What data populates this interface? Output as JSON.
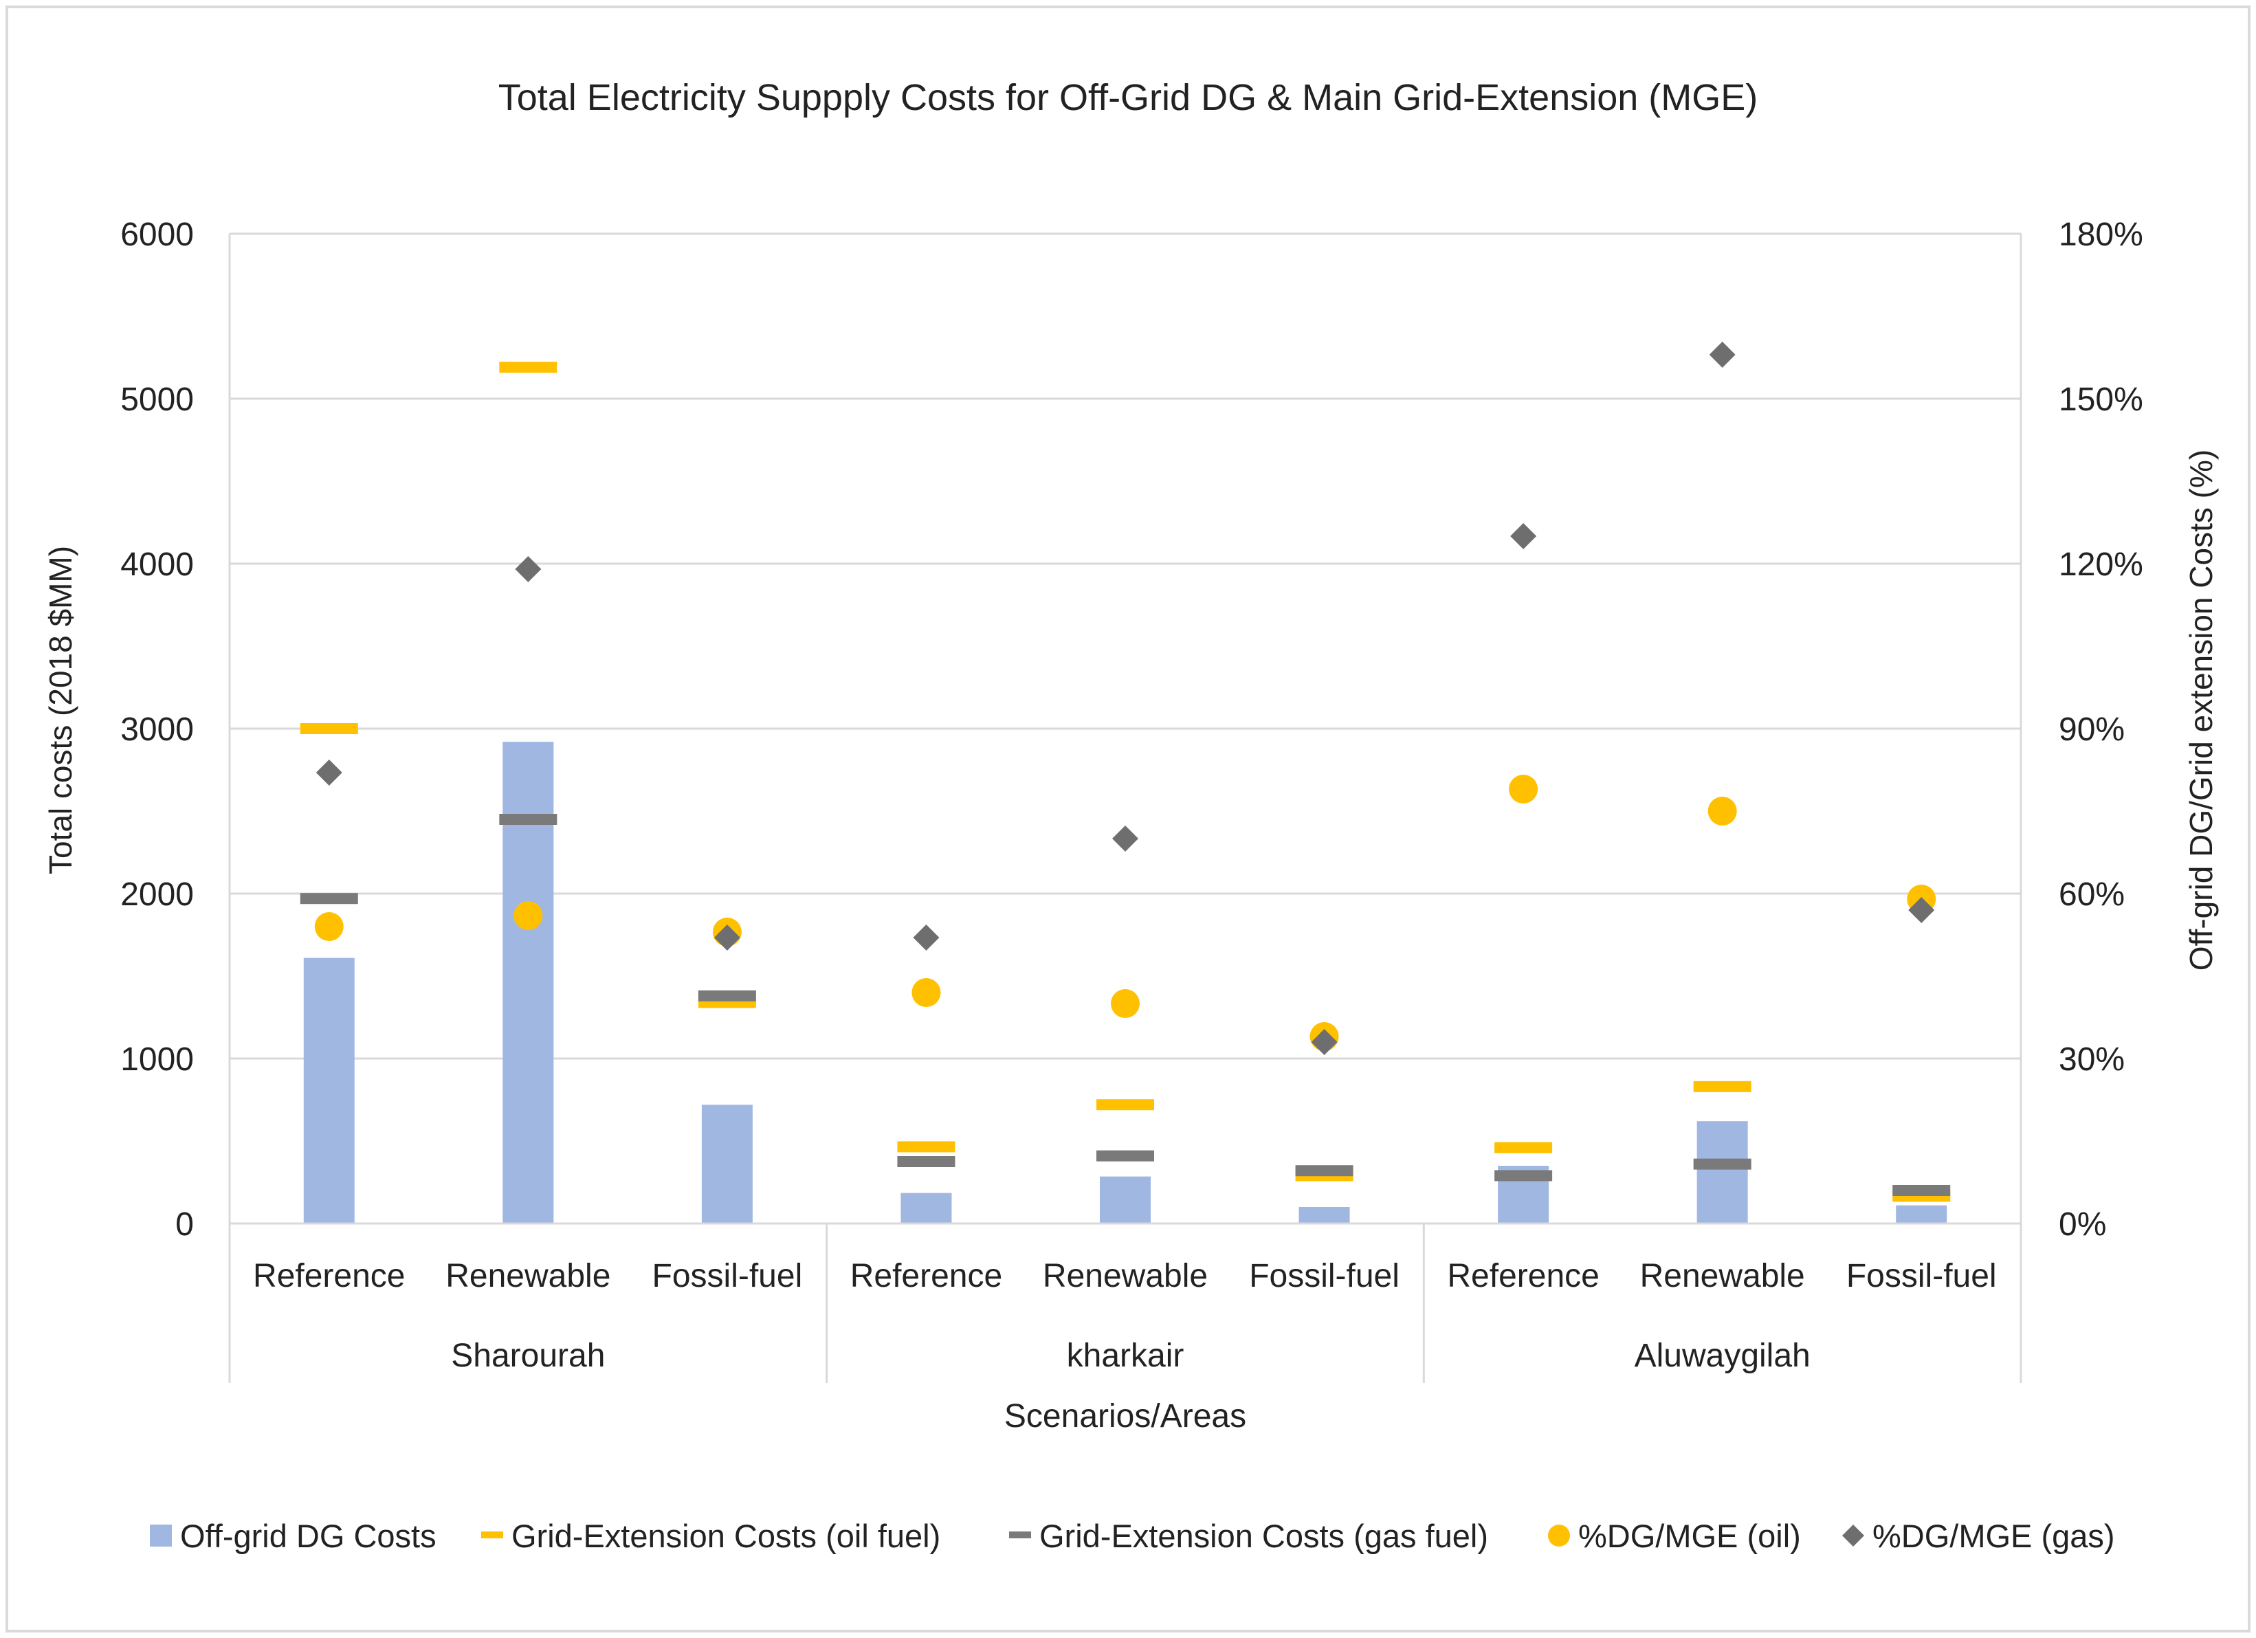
{
  "chart_data": {
    "type": "bar",
    "title": "Total Electricity Suppply Costs for Off-Grid DG & Main Grid-Extension (MGE)",
    "xlabel": "Scenarios/Areas",
    "ylabel": "Total costs (2018 $MM)",
    "y2label": "Off-grid DG/Grid extension Costs (%)",
    "ylim": [
      0,
      6000
    ],
    "y2lim": [
      0,
      1.8
    ],
    "yticks": [
      "0",
      "1000",
      "2000",
      "3000",
      "4000",
      "5000",
      "6000"
    ],
    "y2ticks": [
      "0%",
      "30%",
      "60%",
      "90%",
      "120%",
      "150%",
      "180%"
    ],
    "grid": true,
    "legend_position": "bottom",
    "groups": [
      "Sharourah",
      "kharkair",
      "Aluwaygilah"
    ],
    "categories": [
      "Reference",
      "Renewable",
      "Fossil-fuel",
      "Reference",
      "Renewable",
      "Fossil-fuel",
      "Reference",
      "Renewable",
      "Fossil-fuel"
    ],
    "series": [
      {
        "name": "Off-grid DG Costs",
        "kind": "bar",
        "axis": "left",
        "color": "#a0b7e2",
        "values": [
          1610,
          2920,
          720,
          185,
          285,
          100,
          350,
          620,
          110
        ]
      },
      {
        "name": "Grid-Extension Costs (oil fuel)",
        "kind": "dash",
        "axis": "left",
        "color": "#ffc000",
        "values": [
          3000,
          5190,
          1340,
          465,
          720,
          290,
          460,
          830,
          165
        ]
      },
      {
        "name": "Grid-Extension Costs (gas fuel)",
        "kind": "dash",
        "axis": "left",
        "color": "#7a7a7a",
        "values": [
          1970,
          2450,
          1380,
          375,
          410,
          320,
          290,
          360,
          200
        ]
      },
      {
        "name": "%DG/MGE (oil)",
        "kind": "circle",
        "axis": "right",
        "color": "#ffc000",
        "values": [
          0.54,
          0.56,
          0.53,
          0.42,
          0.4,
          0.34,
          0.79,
          0.75,
          0.59
        ]
      },
      {
        "name": "%DG/MGE (gas)",
        "kind": "diamond",
        "axis": "right",
        "color": "#6e6e6e",
        "values": [
          0.82,
          1.19,
          0.52,
          0.52,
          0.7,
          0.33,
          1.25,
          1.58,
          0.57
        ]
      }
    ]
  }
}
